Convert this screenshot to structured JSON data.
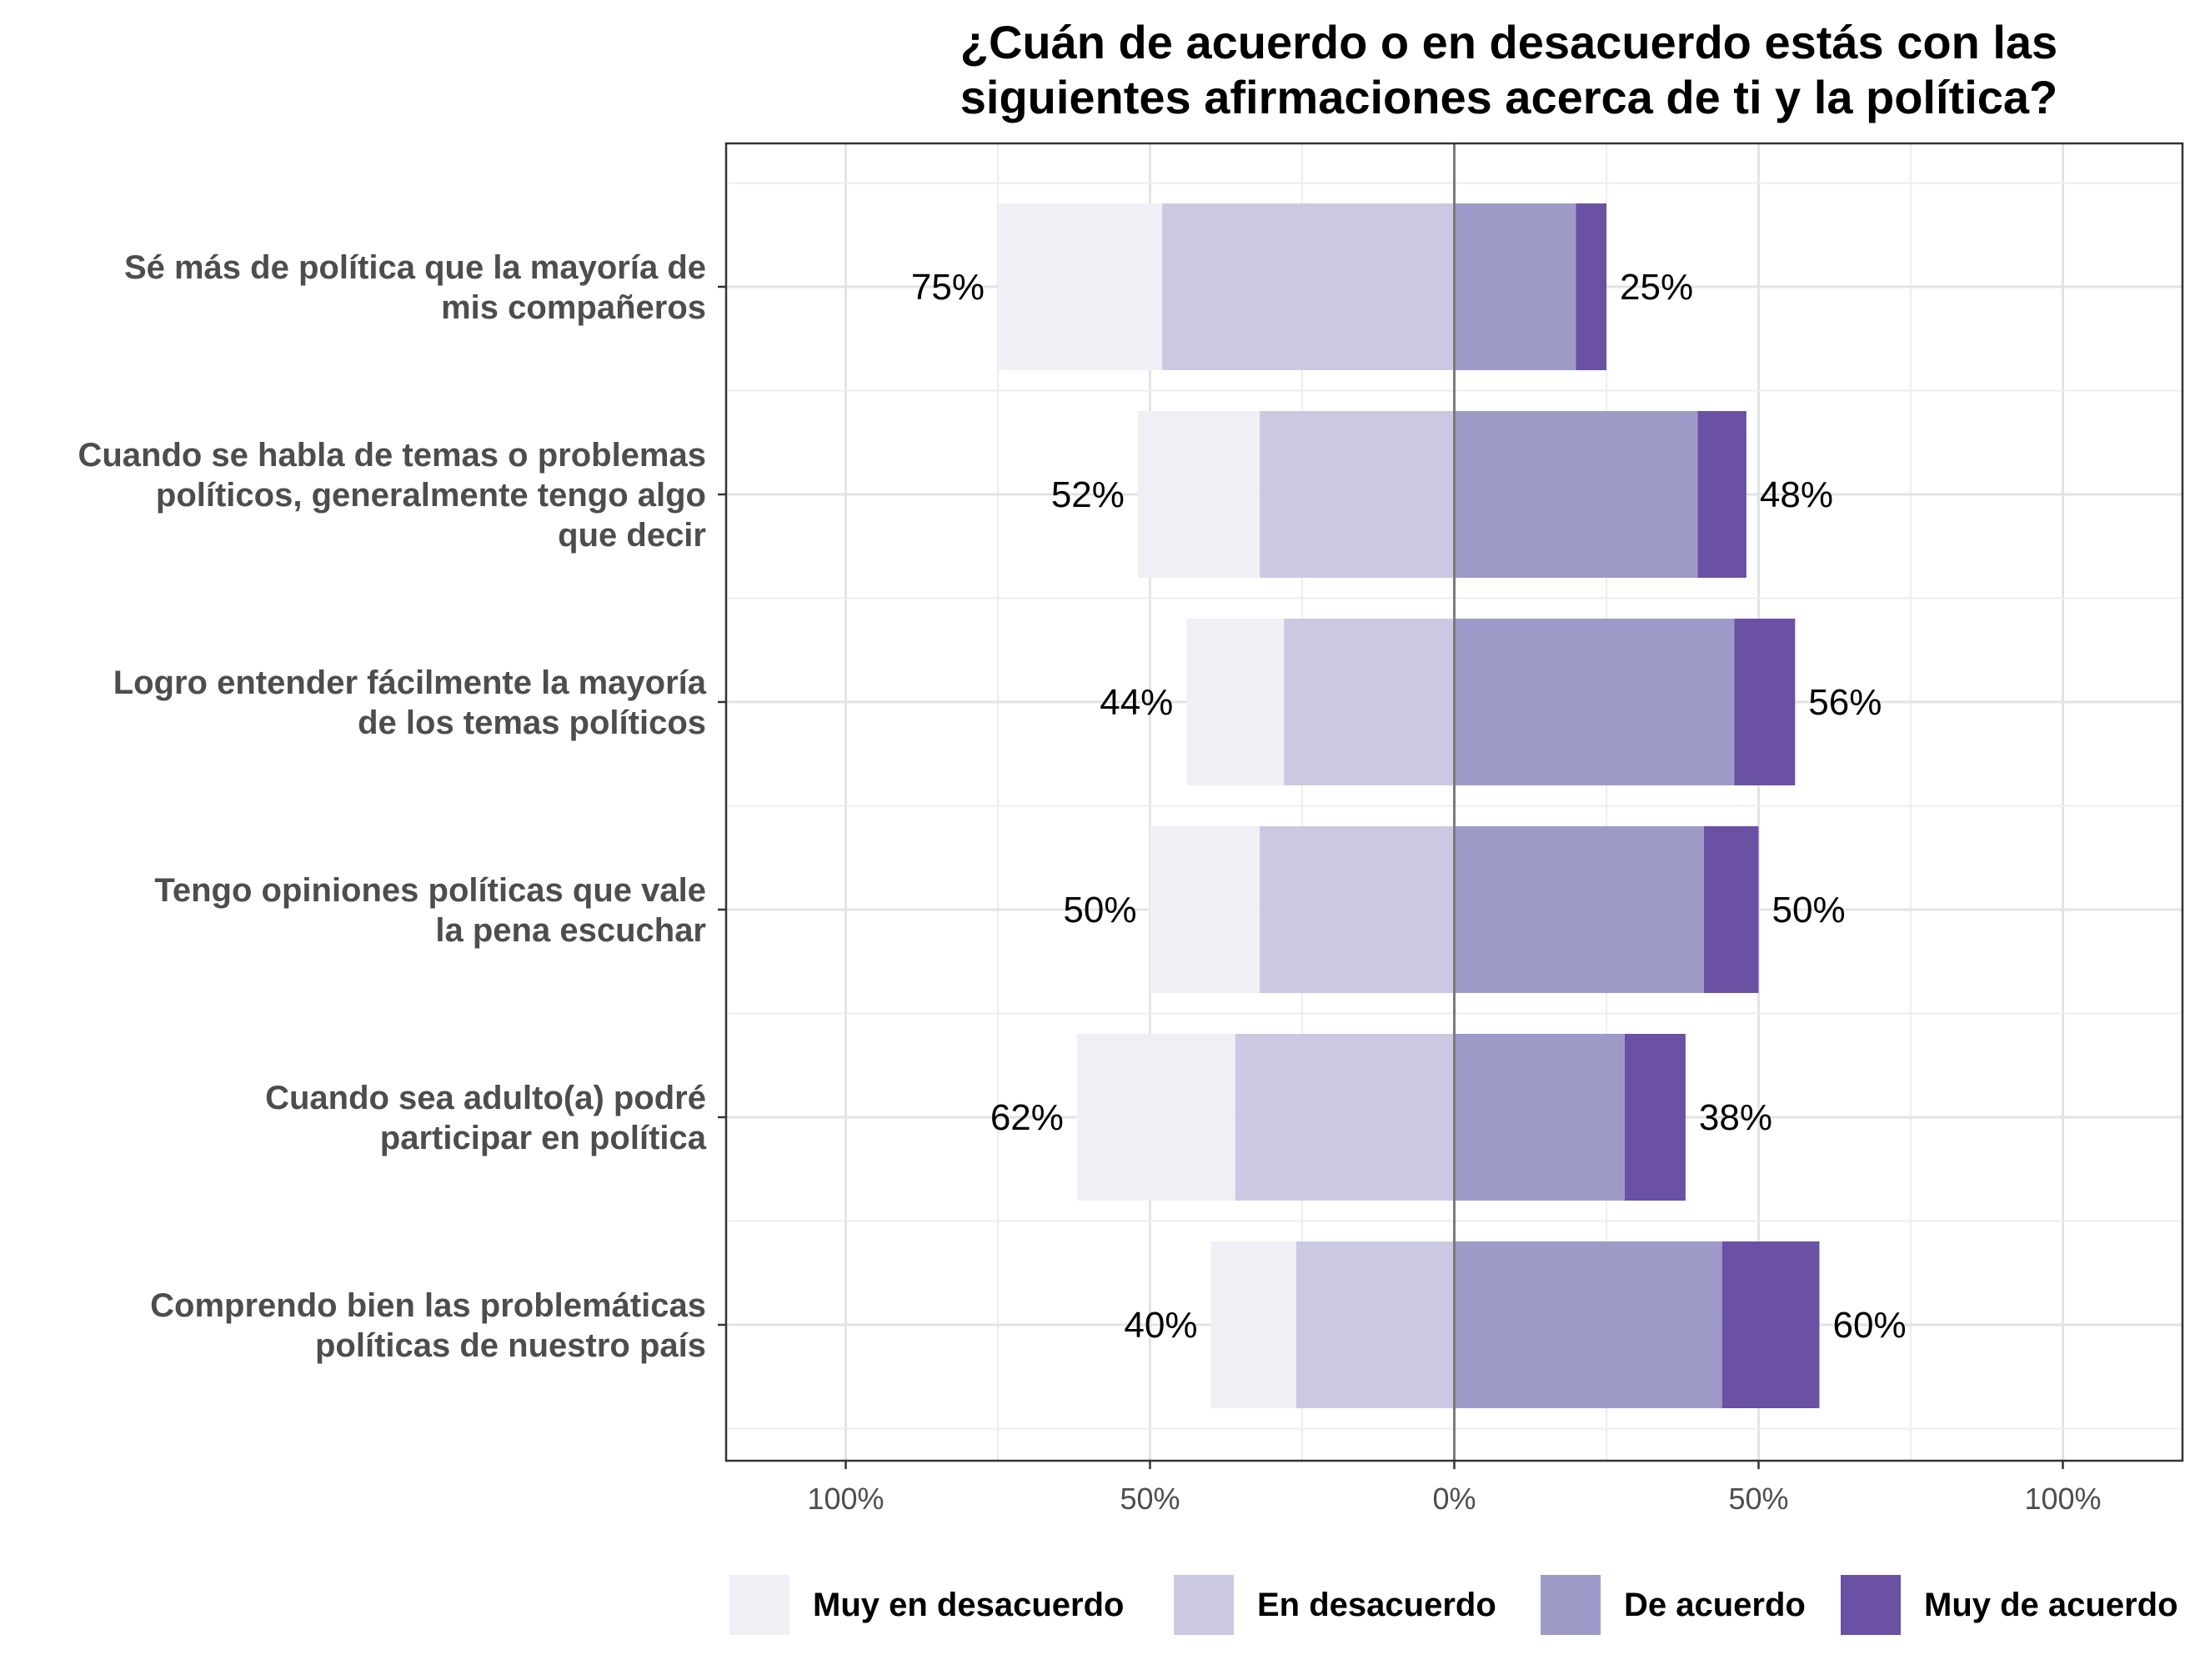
{
  "chart_data": {
    "type": "bar",
    "orientation": "horizontal",
    "stacked": "diverging",
    "title": [
      "¿Cuán de acuerdo o en desacuerdo estás con las",
      "siguientes afirmaciones acerca de ti y la política?"
    ],
    "xlabel": "",
    "ylabel": "",
    "xlim": [
      -120,
      120
    ],
    "x_ticks": [
      -100,
      -50,
      0,
      50,
      100
    ],
    "x_tick_labels": [
      "100%",
      "50%",
      "0%",
      "50%",
      "100%"
    ],
    "grid": true,
    "legend_position": "bottom",
    "categories": [
      [
        "Sé más de política que la mayoría de",
        "mis compañeros"
      ],
      [
        "Cuando se habla de temas o problemas",
        "políticos, generalmente tengo algo",
        "que decir"
      ],
      [
        "Logro entender fácilmente la mayoría",
        "de los temas políticos"
      ],
      [
        "Tengo opiniones políticas que vale",
        "la pena escuchar"
      ],
      [
        "Cuando sea adulto(a) podré",
        "participar en política"
      ],
      [
        "Comprendo bien las problemáticas",
        "políticas de nuestro país"
      ]
    ],
    "series": [
      {
        "name": "Muy en desacuerdo",
        "side": "left",
        "color": "#f0eff6",
        "values": [
          27,
          20,
          16,
          18,
          26,
          14
        ]
      },
      {
        "name": "En desacuerdo",
        "side": "left",
        "color": "#cbc9e2",
        "values": [
          48,
          32,
          28,
          32,
          36,
          26
        ]
      },
      {
        "name": "De acuerdo",
        "side": "right",
        "color": "#9e9ac8",
        "values": [
          20,
          40,
          46,
          41,
          28,
          44
        ]
      },
      {
        "name": "Muy de acuerdo",
        "side": "right",
        "color": "#6a51a3",
        "values": [
          5,
          8,
          10,
          9,
          10,
          16
        ]
      }
    ],
    "left_totals": [
      "75%",
      "52%",
      "44%",
      "50%",
      "62%",
      "40%"
    ],
    "right_totals": [
      "25%",
      "48%",
      "56%",
      "50%",
      "38%",
      "60%"
    ]
  }
}
